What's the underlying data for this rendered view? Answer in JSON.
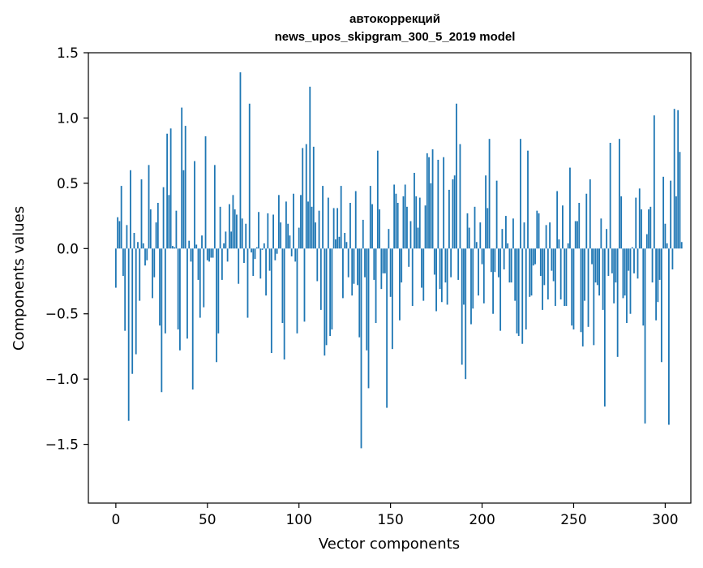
{
  "chart_data": {
    "type": "bar",
    "title_line1": "автокоррекций",
    "title_line2": "news_upos_skipgram_300_5_2019 model",
    "xlabel": "Vector components",
    "ylabel": "Components values",
    "xlim": [
      -15,
      314
    ],
    "ylim": [
      -1.95,
      1.5
    ],
    "x_ticks": [
      {
        "value": 0,
        "label": "0"
      },
      {
        "value": 50,
        "label": "50"
      },
      {
        "value": 100,
        "label": "100"
      },
      {
        "value": 150,
        "label": "150"
      },
      {
        "value": 200,
        "label": "200"
      },
      {
        "value": 250,
        "label": "250"
      },
      {
        "value": 300,
        "label": "300"
      }
    ],
    "y_ticks": [
      {
        "value": 1.5,
        "label": "1.5"
      },
      {
        "value": 1.0,
        "label": "1.0"
      },
      {
        "value": 0.5,
        "label": "0.5"
      },
      {
        "value": 0.0,
        "label": "0.0"
      },
      {
        "value": -0.5,
        "label": "−0.5"
      },
      {
        "value": -1.0,
        "label": "−1.0"
      },
      {
        "value": -1.5,
        "label": "−1.5"
      }
    ],
    "bar_color": "#1f77b4",
    "values": [
      -0.3,
      0.24,
      0.21,
      0.48,
      -0.21,
      -0.63,
      0.18,
      -1.32,
      0.6,
      -0.96,
      0.12,
      -0.81,
      0.05,
      -0.4,
      0.53,
      0.04,
      -0.13,
      -0.09,
      0.64,
      0.3,
      -0.38,
      -0.22,
      0.2,
      0.35,
      -0.59,
      -1.1,
      0.47,
      -0.65,
      0.88,
      0.41,
      0.92,
      0.02,
      0.01,
      0.29,
      -0.62,
      -0.78,
      1.08,
      0.6,
      0.94,
      -0.69,
      0.06,
      -0.1,
      -1.08,
      0.67,
      0.03,
      -0.24,
      -0.53,
      0.1,
      -0.45,
      0.86,
      -0.09,
      -0.1,
      -0.07,
      -0.07,
      0.64,
      -0.87,
      -0.65,
      0.32,
      -0.24,
      0.04,
      0.13,
      -0.1,
      0.34,
      0.13,
      0.41,
      0.3,
      0.26,
      -0.27,
      1.35,
      0.23,
      -0.11,
      0.19,
      -0.53,
      1.11,
      -0.03,
      -0.21,
      -0.08,
      0.01,
      0.28,
      -0.23,
      -0.01,
      0.04,
      -0.36,
      0.27,
      -0.17,
      -0.8,
      0.26,
      -0.09,
      -0.04,
      0.41,
      0.2,
      -0.57,
      -0.85,
      0.36,
      0.19,
      0.1,
      -0.06,
      0.42,
      -0.1,
      -0.65,
      0.16,
      0.41,
      0.77,
      -0.56,
      0.8,
      0.36,
      1.24,
      0.32,
      0.78,
      0.2,
      -0.25,
      0.29,
      -0.47,
      0.48,
      -0.82,
      -0.74,
      0.39,
      -0.67,
      -0.62,
      0.31,
      0.07,
      0.31,
      0.09,
      0.48,
      -0.38,
      0.12,
      0.05,
      -0.22,
      0.35,
      -0.36,
      -0.27,
      0.44,
      -0.28,
      -0.68,
      -1.53,
      0.22,
      -0.22,
      -0.78,
      -1.07,
      0.48,
      0.34,
      -0.24,
      -0.57,
      0.75,
      0.3,
      -0.31,
      -0.19,
      -0.19,
      -1.22,
      0.15,
      -0.37,
      -0.77,
      0.49,
      0.42,
      0.35,
      -0.55,
      -0.26,
      0.4,
      0.49,
      0.32,
      -0.14,
      0.21,
      -0.44,
      0.58,
      0.4,
      0.16,
      0.39,
      -0.3,
      -0.4,
      0.33,
      0.73,
      0.7,
      0.5,
      0.76,
      -0.2,
      -0.48,
      0.68,
      -0.31,
      -0.41,
      0.7,
      -0.26,
      -0.43,
      0.45,
      -0.22,
      0.53,
      0.56,
      1.11,
      -0.24,
      0.8,
      -0.89,
      -0.43,
      -1.0,
      0.27,
      0.16,
      -0.58,
      -0.46,
      0.32,
      0.05,
      -0.36,
      0.2,
      -0.12,
      -0.42,
      0.56,
      0.31,
      0.84,
      -0.18,
      -0.5,
      -0.18,
      0.52,
      -0.22,
      -0.63,
      0.15,
      -0.16,
      0.25,
      0.04,
      -0.26,
      -0.26,
      0.23,
      -0.4,
      -0.65,
      -0.67,
      0.84,
      -0.73,
      0.2,
      -0.62,
      0.75,
      -0.37,
      -0.36,
      -0.13,
      -0.12,
      0.29,
      0.27,
      -0.21,
      -0.47,
      -0.28,
      0.18,
      -0.39,
      0.2,
      -0.17,
      -0.25,
      -0.44,
      0.44,
      0.07,
      -0.39,
      0.33,
      -0.44,
      -0.44,
      0.04,
      0.62,
      -0.59,
      -0.62,
      0.21,
      0.21,
      0.35,
      -0.64,
      -0.75,
      -0.4,
      0.42,
      -0.6,
      0.53,
      -0.12,
      -0.74,
      -0.26,
      -0.28,
      -0.36,
      0.23,
      -0.47,
      -1.21,
      0.15,
      -0.21,
      0.81,
      -0.19,
      -0.42,
      -0.26,
      -0.83,
      0.84,
      0.4,
      -0.38,
      -0.36,
      -0.57,
      -0.17,
      -0.5,
      0.01,
      -0.19,
      0.39,
      -0.23,
      0.46,
      0.3,
      -0.59,
      -1.34,
      0.11,
      0.3,
      0.32,
      -0.26,
      1.02,
      -0.55,
      -0.41,
      -0.24,
      -0.87,
      0.55,
      0.19,
      0.04,
      -1.35,
      0.52,
      -0.16,
      1.07,
      0.4,
      1.06,
      0.74,
      0.05
    ]
  }
}
